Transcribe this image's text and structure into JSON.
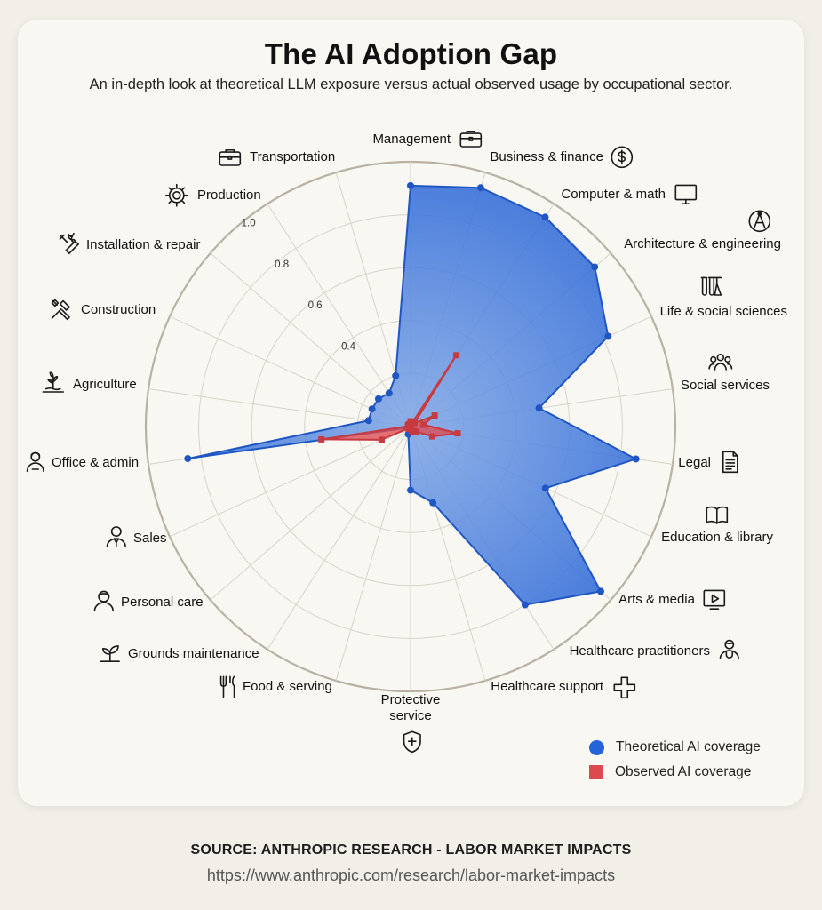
{
  "title": "The AI Adoption Gap",
  "subtitle": "An in-depth look at theoretical LLM exposure versus actual observed usage by occupational sector.",
  "colors": {
    "theoretical": "#2563d8",
    "observed": "#dc4a4f",
    "grid": "#d7d3c8",
    "outer": "#b9b1a3"
  },
  "chart_data": {
    "type": "radar",
    "categories": [
      "Management",
      "Business & finance",
      "Computer & math",
      "Architecture & engineering",
      "Life & social sciences",
      "Social services",
      "Legal",
      "Education & library",
      "Arts & media",
      "Healthcare practitioners",
      "Healthcare support",
      "Protective service",
      "Food & serving",
      "Grounds maintenance",
      "Personal care",
      "Sales",
      "Office & admin",
      "Agriculture",
      "Construction",
      "Installation & repair",
      "Production",
      "Transportation"
    ],
    "category_icons": [
      "briefcase-icon",
      "dollar-icon",
      "monitor-icon",
      "compass-icon",
      "flask-icon",
      "people-icon",
      "document-icon",
      "book-icon",
      "play-icon",
      "doctor-icon",
      "cross-icon",
      "shield-icon",
      "fork-knife-icon",
      "plant-icon",
      "person-icon",
      "salesperson-icon",
      "office-worker-icon",
      "wheat-icon",
      "tools-icon",
      "wrench-icon",
      "gear-icon",
      "briefcase-icon"
    ],
    "tick_labels": [
      "0.4",
      "0.6",
      "0.8",
      "1.0"
    ],
    "series": [
      {
        "name": "Theoretical AI coverage",
        "values": [
          0.91,
          0.94,
          0.94,
          0.92,
          0.82,
          0.49,
          0.86,
          0.56,
          0.95,
          0.8,
          0.3,
          0.24,
          0.03,
          0.01,
          0.01,
          0.01,
          0.85,
          0.16,
          0.16,
          0.16,
          0.15,
          0.2
        ]
      },
      {
        "name": "Observed AI coverage",
        "values": [
          0.02,
          0.01,
          0.32,
          0.02,
          0.1,
          0.05,
          0.18,
          0.09,
          0.03,
          0.02,
          0.02,
          0.01,
          0.01,
          0.01,
          0.01,
          0.12,
          0.34,
          0.01,
          0.01,
          0.01,
          0.01,
          0.01
        ]
      }
    ]
  },
  "legend": {
    "theoretical": "Theoretical AI coverage",
    "observed": "Observed AI coverage"
  },
  "source": "SOURCE: ANTHROPIC RESEARCH - LABOR MARKET IMPACTS",
  "url": "https://www.anthropic.com/research/labor-market-impacts"
}
